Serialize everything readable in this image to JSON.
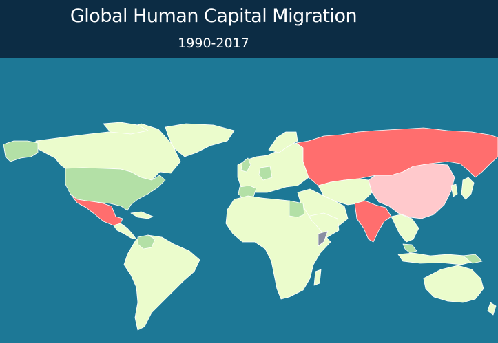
{
  "header": {
    "title": "Global Human Capital Migration",
    "subtitle": "1990-2017"
  },
  "colors": {
    "ocean": "#1d7896",
    "header_background": "#0c2c44",
    "neutral": "#ebfccc",
    "mild_gain": "#b3e0a6",
    "strong_loss": "#ff6e6e",
    "mild_loss": "#ffc9cc",
    "no_data": "#8a8fa3"
  },
  "map": {
    "projection": "equirectangular",
    "categories": {
      "strong_loss": [
        "Russia",
        "India",
        "Mexico"
      ],
      "mild_loss": [
        "China"
      ],
      "mild_gain": [
        "United States",
        "Alaska",
        "Spain",
        "Germany",
        "Egypt",
        "Venezuela",
        "Malaysia"
      ],
      "no_data": [
        "Somalia"
      ]
    }
  }
}
